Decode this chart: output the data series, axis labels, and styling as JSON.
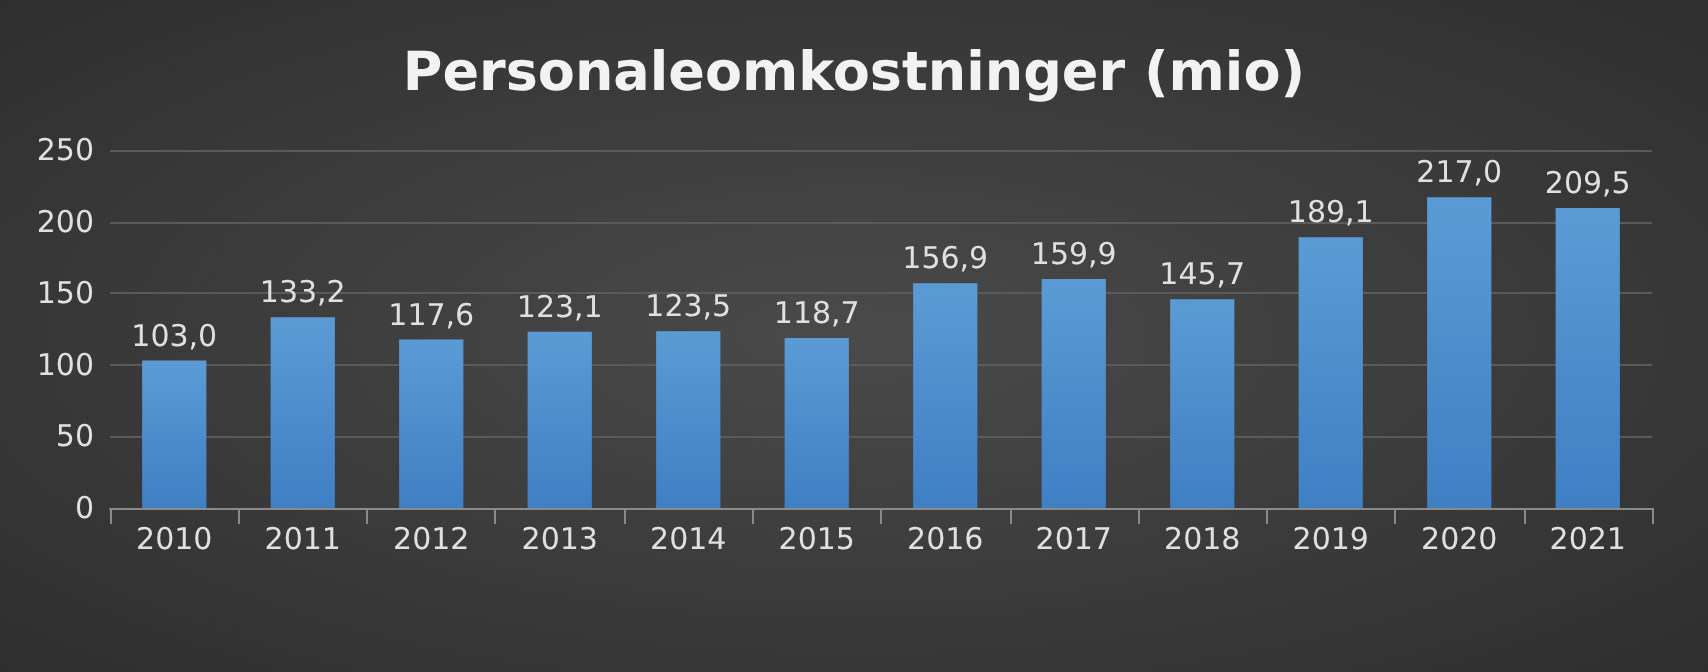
{
  "chart_data": {
    "type": "bar",
    "title": "Personaleomkostninger (mio)",
    "categories": [
      "2010",
      "2011",
      "2012",
      "2013",
      "2014",
      "2015",
      "2016",
      "2017",
      "2018",
      "2019",
      "2020",
      "2021"
    ],
    "values": [
      103.0,
      133.2,
      117.6,
      123.1,
      123.5,
      118.7,
      156.9,
      159.9,
      145.7,
      189.1,
      217.0,
      209.5
    ],
    "value_labels": [
      "103,0",
      "133,2",
      "117,6",
      "123,1",
      "123,5",
      "118,7",
      "156,9",
      "159,9",
      "145,7",
      "189,1",
      "217,0",
      "209,5"
    ],
    "color": "#5b9bd5",
    "ylim": [
      0,
      250
    ],
    "yticks": [
      0,
      50,
      100,
      150,
      200,
      250
    ],
    "grid": "y"
  }
}
